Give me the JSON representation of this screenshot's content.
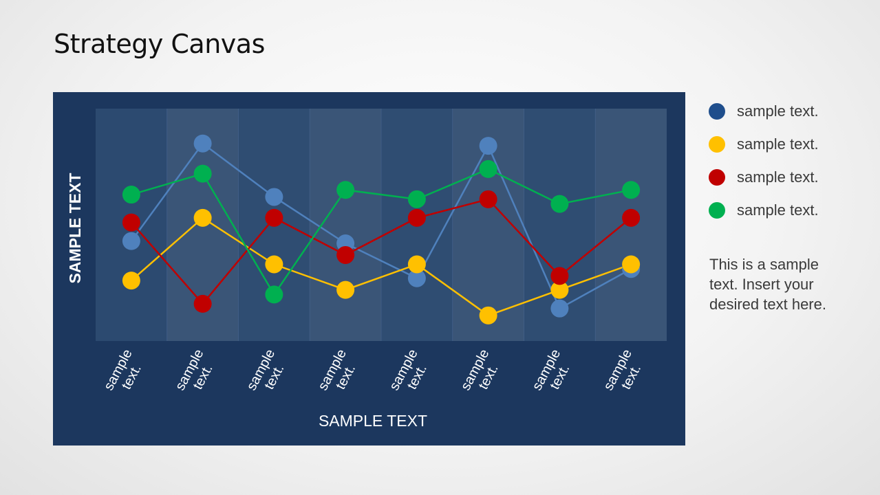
{
  "slide": {
    "title": "Strategy Canvas",
    "note": "This is a sample text. Insert your desired text here."
  },
  "legend": {
    "items": [
      {
        "label": "sample text.",
        "color": "#1f4e8c"
      },
      {
        "label": "sample text.",
        "color": "#ffc000"
      },
      {
        "label": "sample text.",
        "color": "#c00000"
      },
      {
        "label": "sample text.",
        "color": "#00b050"
      }
    ]
  },
  "chart_data": {
    "type": "line",
    "xlabel": "SAMPLE TEXT",
    "ylabel": "SAMPLE TEXT",
    "categories": [
      "sample text.",
      "sample text.",
      "sample text.",
      "sample text.",
      "sample text.",
      "sample text.",
      "sample text.",
      "sample text."
    ],
    "ylim": [
      0,
      10
    ],
    "grid": false,
    "legend_position": "right",
    "series": [
      {
        "color": "#4f81bd",
        "values": [
          4.3,
          8.5,
          6.2,
          4.2,
          2.7,
          8.4,
          1.4,
          3.1
        ]
      },
      {
        "color": "#ffc000",
        "values": [
          2.6,
          5.3,
          3.3,
          2.2,
          3.3,
          1.1,
          2.2,
          3.3
        ]
      },
      {
        "color": "#c00000",
        "values": [
          5.1,
          1.6,
          5.3,
          3.7,
          5.3,
          6.1,
          2.8,
          5.3
        ]
      },
      {
        "color": "#00b050",
        "values": [
          6.3,
          7.2,
          2.0,
          6.5,
          6.1,
          7.4,
          5.9,
          6.5
        ]
      }
    ]
  }
}
